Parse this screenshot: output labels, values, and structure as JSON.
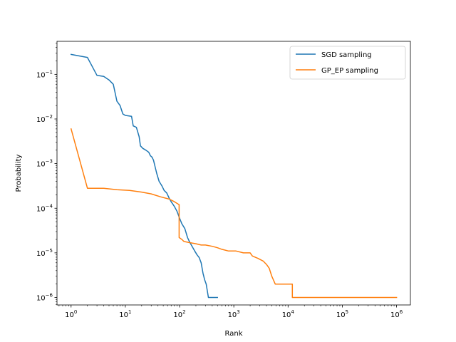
{
  "chart_data": {
    "type": "line",
    "xscale": "log",
    "yscale": "log",
    "xlabel": "Rank",
    "ylabel": "Probability",
    "xlim": [
      0.55,
      1800000
    ],
    "ylim": [
      6.8e-07,
      0.55
    ],
    "x_ticks": [
      {
        "value": 1,
        "base": "10",
        "exp": "0"
      },
      {
        "value": 10,
        "base": "10",
        "exp": "1"
      },
      {
        "value": 100,
        "base": "10",
        "exp": "2"
      },
      {
        "value": 1000,
        "base": "10",
        "exp": "3"
      },
      {
        "value": 10000,
        "base": "10",
        "exp": "4"
      },
      {
        "value": 100000,
        "base": "10",
        "exp": "5"
      },
      {
        "value": 1000000,
        "base": "10",
        "exp": "6"
      }
    ],
    "y_ticks": [
      {
        "value": 1e-06,
        "base": "10",
        "exp": "−6"
      },
      {
        "value": 1e-05,
        "base": "10",
        "exp": "−5"
      },
      {
        "value": 0.0001,
        "base": "10",
        "exp": "−4"
      },
      {
        "value": 0.001,
        "base": "10",
        "exp": "−3"
      },
      {
        "value": 0.01,
        "base": "10",
        "exp": "−2"
      },
      {
        "value": 0.1,
        "base": "10",
        "exp": "−1"
      }
    ],
    "legend_position": "upper right",
    "series": [
      {
        "name": "SGD sampling",
        "color": "#1f77b4",
        "points": [
          [
            1,
            0.28
          ],
          [
            2,
            0.24
          ],
          [
            3,
            0.095
          ],
          [
            4,
            0.09
          ],
          [
            5,
            0.075
          ],
          [
            6,
            0.06
          ],
          [
            7,
            0.025
          ],
          [
            8,
            0.02
          ],
          [
            9,
            0.013
          ],
          [
            10,
            0.012
          ],
          [
            13,
            0.0115
          ],
          [
            14,
            0.007
          ],
          [
            16,
            0.0065
          ],
          [
            18,
            0.004
          ],
          [
            19,
            0.0025
          ],
          [
            21,
            0.0022
          ],
          [
            24,
            0.002
          ],
          [
            27,
            0.0018
          ],
          [
            29,
            0.0015
          ],
          [
            31,
            0.0014
          ],
          [
            33,
            0.0012
          ],
          [
            35,
            0.0009
          ],
          [
            38,
            0.0006
          ],
          [
            42,
            0.0004
          ],
          [
            47,
            0.00032
          ],
          [
            52,
            0.00025
          ],
          [
            58,
            0.00022
          ],
          [
            64,
            0.00017
          ],
          [
            70,
            0.00014
          ],
          [
            80,
            0.00011
          ],
          [
            90,
            8.5e-05
          ],
          [
            100,
            6e-05
          ],
          [
            110,
            4.5e-05
          ],
          [
            125,
            3.5e-05
          ],
          [
            140,
            2.2e-05
          ],
          [
            155,
            1.7e-05
          ],
          [
            170,
            1.4e-05
          ],
          [
            190,
            1.1e-05
          ],
          [
            210,
            9e-06
          ],
          [
            230,
            7.8e-06
          ],
          [
            250,
            6e-06
          ],
          [
            270,
            3.5e-06
          ],
          [
            290,
            2.5e-06
          ],
          [
            310,
            2e-06
          ],
          [
            340,
            1e-06
          ],
          [
            500,
            1e-06
          ]
        ]
      },
      {
        "name": "GP_EP sampling",
        "color": "#ff7f0e",
        "points": [
          [
            1,
            0.006
          ],
          [
            2,
            0.00028
          ],
          [
            4,
            0.00028
          ],
          [
            7,
            0.00026
          ],
          [
            12,
            0.00025
          ],
          [
            20,
            0.00023
          ],
          [
            30,
            0.00021
          ],
          [
            45,
            0.00018
          ],
          [
            65,
            0.00016
          ],
          [
            80,
            0.00014
          ],
          [
            98,
            0.00012
          ],
          [
            98,
            2.2e-05
          ],
          [
            110,
            2e-05
          ],
          [
            120,
            1.8e-05
          ],
          [
            150,
            1.7e-05
          ],
          [
            200,
            1.6e-05
          ],
          [
            250,
            1.5e-05
          ],
          [
            300,
            1.5e-05
          ],
          [
            400,
            1.4e-05
          ],
          [
            500,
            1.3e-05
          ],
          [
            600,
            1.2e-05
          ],
          [
            800,
            1.1e-05
          ],
          [
            1100,
            1.1e-05
          ],
          [
            1500,
            1e-05
          ],
          [
            2000,
            1e-05
          ],
          [
            2200,
            8.5e-06
          ],
          [
            2800,
            7.5e-06
          ],
          [
            3500,
            6.5e-06
          ],
          [
            4000,
            5.5e-06
          ],
          [
            4500,
            4.5e-06
          ],
          [
            5000,
            3e-06
          ],
          [
            5800,
            2e-06
          ],
          [
            12000,
            2e-06
          ],
          [
            12000,
            1e-06
          ],
          [
            1000000,
            1e-06
          ]
        ]
      }
    ]
  }
}
